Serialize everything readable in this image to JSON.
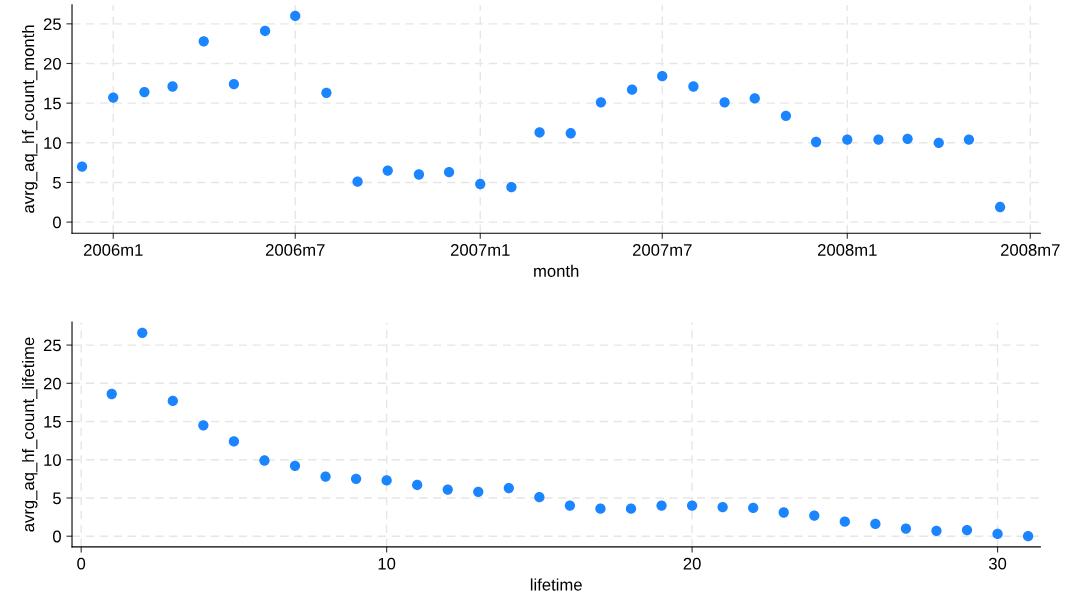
{
  "chart_data": [
    {
      "type": "scatter",
      "xlabel": "month",
      "ylabel": "avrg_aq_hf_count_month",
      "marker": "circle",
      "grid": true,
      "x": [
        "2005-12",
        "2006-01",
        "2006-02",
        "2006-03",
        "2006-04",
        "2006-05",
        "2006-06",
        "2006-07",
        "2006-08",
        "2006-09",
        "2006-10",
        "2006-11",
        "2006-12",
        "2007-01",
        "2007-02",
        "2007-03",
        "2007-04",
        "2007-05",
        "2007-06",
        "2007-07",
        "2007-08",
        "2007-09",
        "2007-10",
        "2007-11",
        "2007-12",
        "2008-01",
        "2008-02",
        "2008-03",
        "2008-04",
        "2008-05",
        "2008-06"
      ],
      "series": [
        {
          "color": "#1a85ff",
          "values": [
            7.0,
            15.7,
            16.4,
            17.1,
            22.8,
            17.4,
            24.1,
            26.0,
            16.3,
            5.1,
            6.5,
            6.0,
            6.3,
            4.8,
            4.4,
            11.3,
            11.2,
            15.1,
            16.7,
            18.4,
            17.1,
            15.1,
            15.6,
            13.4,
            10.1,
            10.4,
            10.4,
            10.5,
            10.0,
            10.4,
            1.9
          ]
        }
      ],
      "xlim": [
        "2005-11-21",
        "2008-07-11"
      ],
      "xticks": [
        {
          "value": "2006-01",
          "label": "2006m1"
        },
        {
          "value": "2006-07",
          "label": "2006m7"
        },
        {
          "value": "2007-01",
          "label": "2007m1"
        },
        {
          "value": "2007-07",
          "label": "2007m7"
        },
        {
          "value": "2008-01",
          "label": "2008m1"
        },
        {
          "value": "2008-07",
          "label": "2008m7"
        }
      ],
      "ylim": [
        -1.4,
        27.4
      ],
      "yticks": [
        0,
        5,
        10,
        15,
        20,
        25
      ]
    },
    {
      "type": "scatter",
      "xlabel": "lifetime",
      "ylabel": "avrg_aq_hf_count_lifetime",
      "marker": "circle",
      "grid": true,
      "x": [
        1,
        2,
        3,
        4,
        5,
        6,
        7,
        8,
        9,
        10,
        11,
        12,
        13,
        14,
        15,
        16,
        17,
        18,
        19,
        20,
        21,
        22,
        23,
        24,
        25,
        26,
        27,
        28,
        29,
        30,
        31
      ],
      "series": [
        {
          "color": "#1a85ff",
          "values": [
            18.6,
            26.6,
            17.7,
            14.5,
            12.4,
            9.9,
            9.2,
            7.8,
            7.5,
            7.3,
            6.7,
            6.1,
            5.8,
            6.3,
            5.1,
            4.0,
            3.6,
            3.6,
            4.0,
            4.0,
            3.8,
            3.7,
            3.1,
            2.7,
            1.9,
            1.6,
            1.0,
            0.7,
            0.8,
            0.3,
            0.0
          ]
        }
      ],
      "xlim": [
        -0.3,
        31.4
      ],
      "xticks": [
        0,
        10,
        20,
        30
      ],
      "ylim": [
        -1.4,
        28.0
      ],
      "yticks": [
        0,
        5,
        10,
        15,
        20,
        25
      ]
    }
  ]
}
